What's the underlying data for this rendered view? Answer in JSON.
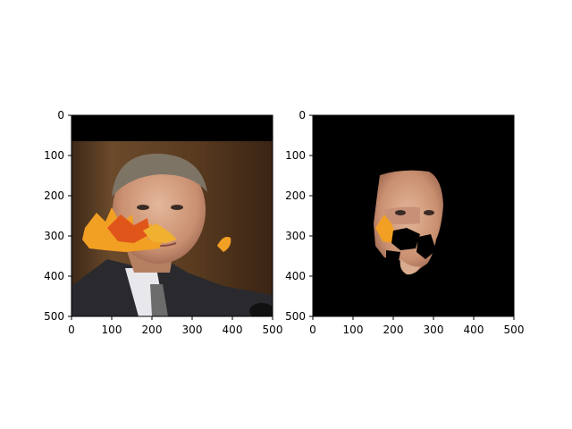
{
  "chart_data": [
    {
      "type": "image",
      "panel": "left",
      "xlim": [
        0,
        500
      ],
      "ylim": [
        500,
        0
      ],
      "x_ticks": [
        0,
        100,
        200,
        300,
        400,
        500
      ],
      "y_ticks": [
        0,
        100,
        200,
        300,
        400,
        500
      ],
      "content": "portrait photo with autumn leaf occlusions; black band at top",
      "colors": {
        "background_band": "#000000",
        "leaf": "#f2a024",
        "wall": "#5b3a20"
      }
    },
    {
      "type": "image",
      "panel": "right",
      "xlim": [
        0,
        500
      ],
      "ylim": [
        500,
        0
      ],
      "x_ticks": [
        0,
        100,
        200,
        300,
        400,
        500
      ],
      "y_ticks": [
        0,
        100,
        200,
        300,
        400,
        500
      ],
      "content": "segmented face region on black background with occluded parts removed",
      "colors": {
        "background": "#000000",
        "skin": "#d8a88a",
        "leaf": "#f2a024"
      }
    }
  ]
}
